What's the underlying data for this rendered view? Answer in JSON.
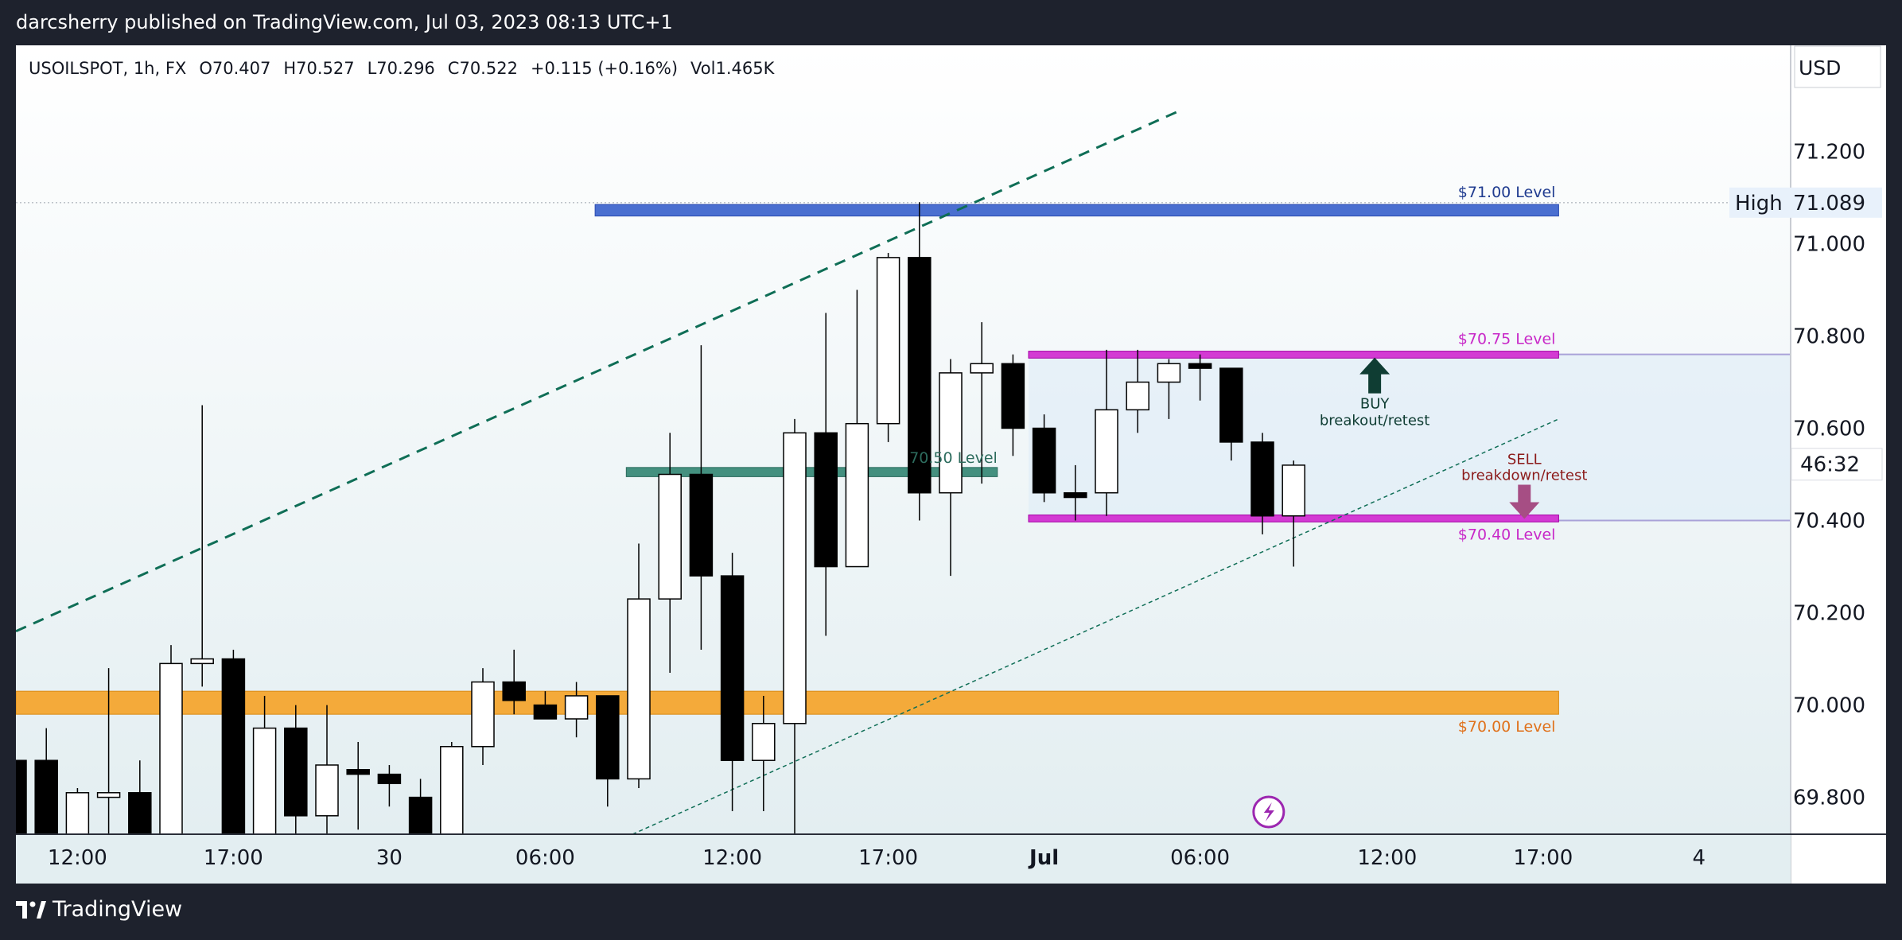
{
  "header": {
    "published_text": "darcsherry published on TradingView.com, Jul 03, 2023 08:13 UTC+1"
  },
  "footer": {
    "brand": "TradingView"
  },
  "colors": {
    "background": "#1e222d",
    "chart_bg_top": "#ffffff",
    "chart_bg_bottom": "#e3eef1",
    "blue_zone": "#4a6fd0",
    "teal_zone": "#44907f",
    "magenta_level": "#d33ad3",
    "orange_zone": "#f4aa3a",
    "green_trend": "#0f6e56",
    "buy_arrow": "#0f3d33",
    "sell_arrow": "#a64e84",
    "magenta_text": "#c828c8",
    "blue_text": "#1f3b8f",
    "orange_text": "#e0711b",
    "sell_text": "#8c1b1b"
  },
  "chart_data": {
    "type": "candlestick",
    "symbol_line": {
      "symbol": "USOILSPOT, 1h, FX",
      "open": "O70.407",
      "high": "H70.527",
      "low": "L70.296",
      "close": "C70.522",
      "change": "+0.115 (+0.16%)",
      "volume": "Vol1.465K"
    },
    "currency": "USD",
    "y_axis": {
      "ticks": [
        "71.200",
        "71.000",
        "70.800",
        "70.600",
        "70.400",
        "70.200",
        "70.000",
        "69.800"
      ],
      "tick_values": [
        71.2,
        71.0,
        70.8,
        70.6,
        70.4,
        70.2,
        70.0,
        69.8
      ],
      "range": [
        69.72,
        71.43
      ],
      "high_label": "High",
      "high_value": "71.089",
      "countdown": "46:32"
    },
    "x_axis": {
      "labels": [
        "12:00",
        "17:00",
        "30",
        "06:00",
        "12:00",
        "17:00",
        "Jul",
        "06:00",
        "12:00",
        "17:00",
        "4"
      ],
      "label_bar_index": [
        2,
        7,
        12,
        17,
        23,
        28,
        33,
        38,
        44,
        49,
        54
      ],
      "bold": [
        false,
        false,
        false,
        false,
        false,
        false,
        true,
        false,
        false,
        false,
        false
      ]
    },
    "candles": [
      {
        "o": 69.88,
        "h": 69.88,
        "l": 69.72,
        "c": 69.72
      },
      {
        "o": 69.88,
        "h": 69.95,
        "l": 69.72,
        "c": 69.72
      },
      {
        "o": 69.72,
        "h": 69.82,
        "l": 69.72,
        "c": 69.81
      },
      {
        "o": 69.8,
        "h": 70.08,
        "l": 69.72,
        "c": 69.81
      },
      {
        "o": 69.81,
        "h": 69.88,
        "l": 69.72,
        "c": 69.72
      },
      {
        "o": 69.72,
        "h": 70.13,
        "l": 69.72,
        "c": 70.09
      },
      {
        "o": 70.09,
        "h": 70.65,
        "l": 70.04,
        "c": 70.1
      },
      {
        "o": 70.1,
        "h": 70.12,
        "l": 69.72,
        "c": 69.72
      },
      {
        "o": 69.72,
        "h": 70.02,
        "l": 69.72,
        "c": 69.95
      },
      {
        "o": 69.95,
        "h": 70.0,
        "l": 69.72,
        "c": 69.76
      },
      {
        "o": 69.76,
        "h": 70.0,
        "l": 69.72,
        "c": 69.87
      },
      {
        "o": 69.86,
        "h": 69.92,
        "l": 69.73,
        "c": 69.85
      },
      {
        "o": 69.85,
        "h": 69.87,
        "l": 69.78,
        "c": 69.83
      },
      {
        "o": 69.8,
        "h": 69.84,
        "l": 69.72,
        "c": 69.72
      },
      {
        "o": 69.72,
        "h": 69.92,
        "l": 69.72,
        "c": 69.91
      },
      {
        "o": 69.91,
        "h": 70.08,
        "l": 69.87,
        "c": 70.05
      },
      {
        "o": 70.05,
        "h": 70.12,
        "l": 69.98,
        "c": 70.01
      },
      {
        "o": 70.0,
        "h": 70.03,
        "l": 69.98,
        "c": 69.97
      },
      {
        "o": 69.97,
        "h": 70.05,
        "l": 69.93,
        "c": 70.02
      },
      {
        "o": 70.02,
        "h": 70.02,
        "l": 69.78,
        "c": 69.84
      },
      {
        "o": 69.84,
        "h": 70.35,
        "l": 69.82,
        "c": 70.23
      },
      {
        "o": 70.23,
        "h": 70.59,
        "l": 70.07,
        "c": 70.5
      },
      {
        "o": 70.5,
        "h": 70.78,
        "l": 70.12,
        "c": 70.28
      },
      {
        "o": 70.28,
        "h": 70.33,
        "l": 69.77,
        "c": 69.88
      },
      {
        "o": 69.88,
        "h": 70.02,
        "l": 69.77,
        "c": 69.96
      },
      {
        "o": 69.96,
        "h": 70.62,
        "l": 69.72,
        "c": 70.59
      },
      {
        "o": 70.59,
        "h": 70.85,
        "l": 70.15,
        "c": 70.3
      },
      {
        "o": 70.3,
        "h": 70.9,
        "l": 70.3,
        "c": 70.61
      },
      {
        "o": 70.61,
        "h": 70.98,
        "l": 70.57,
        "c": 70.97
      },
      {
        "o": 70.97,
        "h": 71.09,
        "l": 70.4,
        "c": 70.46
      },
      {
        "o": 70.46,
        "h": 70.75,
        "l": 70.28,
        "c": 70.72
      },
      {
        "o": 70.72,
        "h": 70.83,
        "l": 70.48,
        "c": 70.74
      },
      {
        "o": 70.74,
        "h": 70.76,
        "l": 70.54,
        "c": 70.6
      },
      {
        "o": 70.6,
        "h": 70.63,
        "l": 70.44,
        "c": 70.46
      },
      {
        "o": 70.46,
        "h": 70.52,
        "l": 70.4,
        "c": 70.45
      },
      {
        "o": 70.46,
        "h": 70.77,
        "l": 70.41,
        "c": 70.64
      },
      {
        "o": 70.64,
        "h": 70.77,
        "l": 70.59,
        "c": 70.7
      },
      {
        "o": 70.7,
        "h": 70.75,
        "l": 70.62,
        "c": 70.74
      },
      {
        "o": 70.74,
        "h": 70.76,
        "l": 70.66,
        "c": 70.73
      },
      {
        "o": 70.73,
        "h": 70.73,
        "l": 70.53,
        "c": 70.57
      },
      {
        "o": 70.57,
        "h": 70.59,
        "l": 70.37,
        "c": 70.41
      },
      {
        "o": 70.41,
        "h": 70.53,
        "l": 70.3,
        "c": 70.52
      }
    ],
    "levels": [
      {
        "label": "$71.00 Level",
        "value": 71.07,
        "zone": [
          71.06,
          71.085
        ]
      },
      {
        "label": "$70.75 Level",
        "value": 70.76,
        "zone": [
          70.752,
          70.767
        ]
      },
      {
        "label": "$70.40 Level",
        "value": 70.4,
        "zone": [
          70.397,
          70.412
        ]
      },
      {
        "label": "$70.00 Level",
        "value": 70.0,
        "zone": [
          69.98,
          70.03
        ]
      },
      {
        "label": "70.50 Level",
        "value": 70.5,
        "zone": [
          70.495,
          70.515
        ]
      }
    ],
    "annotations": {
      "buy_label_1": "BUY",
      "buy_label_2": "breakout/retest",
      "sell_label_1": "SELL",
      "sell_label_2": "breakdown/retest"
    }
  }
}
